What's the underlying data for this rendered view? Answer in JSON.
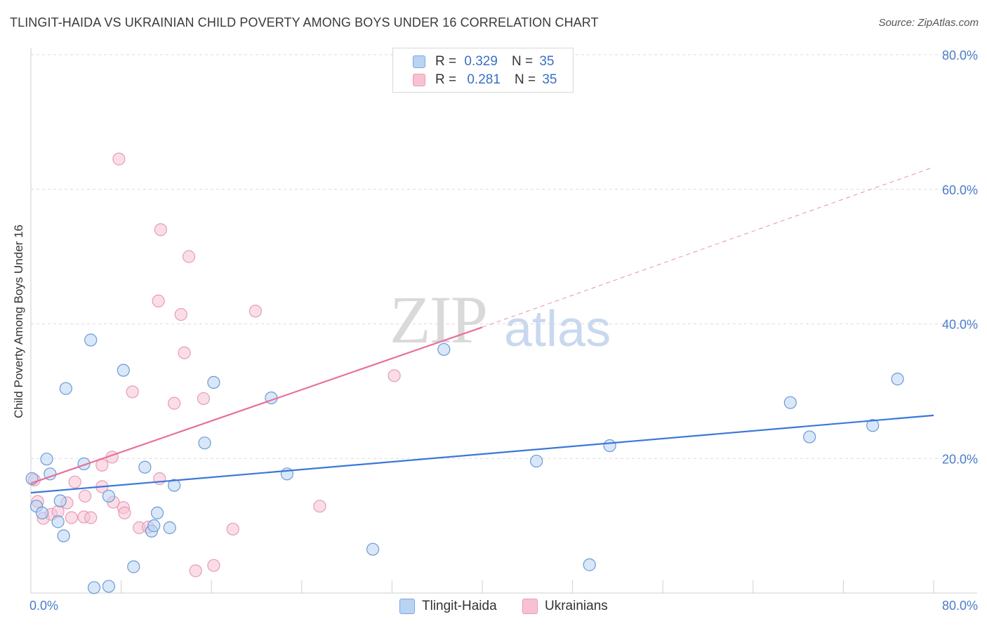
{
  "title": "TLINGIT-HAIDA VS UKRAINIAN CHILD POVERTY AMONG BOYS UNDER 16 CORRELATION CHART",
  "source": "Source: ZipAtlas.com",
  "watermark": {
    "zip": "ZIP",
    "atlas": "atlas"
  },
  "colors": {
    "blue": "#3a78d8",
    "blue_fill": "#b9d3f3",
    "pink": "#e8709a",
    "pink_fill": "#f6c2d3",
    "grid": "#dcdcdc",
    "tick": "#4a7cc9"
  },
  "legend": {
    "series": [
      {
        "r_label": "R =",
        "r_value": "0.329",
        "n_label": "N =",
        "n_value": "35"
      },
      {
        "r_label": "R =",
        "r_value": "0.281",
        "n_label": "N =",
        "n_value": "35"
      }
    ]
  },
  "bottom_legend": [
    "Tlingit-Haida",
    "Ukrainians"
  ],
  "chart_data": {
    "type": "scatter",
    "title": "TLINGIT-HAIDA VS UKRAINIAN CHILD POVERTY AMONG BOYS UNDER 16 CORRELATION CHART",
    "xlabel": "",
    "ylabel": "Child Poverty Among Boys Under 16",
    "xlim": [
      0,
      80
    ],
    "ylim": [
      0,
      80
    ],
    "x_tick_labels": [
      "0.0%",
      "80.0%"
    ],
    "y_tick_labels": [
      "20.0%",
      "40.0%",
      "60.0%",
      "80.0%"
    ],
    "y_ticks": [
      20,
      40,
      60,
      80
    ],
    "series": [
      {
        "name": "Tlingit-Haida",
        "r": 0.329,
        "n": 35,
        "points": [
          [
            0.1,
            17.0
          ],
          [
            0.5,
            12.9
          ],
          [
            1.0,
            11.9
          ],
          [
            1.4,
            19.9
          ],
          [
            1.7,
            17.7
          ],
          [
            2.4,
            10.6
          ],
          [
            2.6,
            13.7
          ],
          [
            2.9,
            8.5
          ],
          [
            3.1,
            30.4
          ],
          [
            4.7,
            19.2
          ],
          [
            5.3,
            37.6
          ],
          [
            5.6,
            0.8
          ],
          [
            6.9,
            14.4
          ],
          [
            6.9,
            1.0
          ],
          [
            8.2,
            33.1
          ],
          [
            9.1,
            3.9
          ],
          [
            10.1,
            18.7
          ],
          [
            10.7,
            9.2
          ],
          [
            10.9,
            10.0
          ],
          [
            11.2,
            11.9
          ],
          [
            12.3,
            9.7
          ],
          [
            12.7,
            16.0
          ],
          [
            15.4,
            22.3
          ],
          [
            16.2,
            31.3
          ],
          [
            21.3,
            29.0
          ],
          [
            22.7,
            17.7
          ],
          [
            30.3,
            6.5
          ],
          [
            36.6,
            36.2
          ],
          [
            44.8,
            19.6
          ],
          [
            49.5,
            4.2
          ],
          [
            51.3,
            21.9
          ],
          [
            67.3,
            28.3
          ],
          [
            69.0,
            23.2
          ],
          [
            74.6,
            24.9
          ],
          [
            76.8,
            31.8
          ]
        ],
        "trend": {
          "x": [
            0,
            80
          ],
          "y": [
            14.9,
            26.4
          ]
        }
      },
      {
        "name": "Ukrainians",
        "r": 0.281,
        "n": 35,
        "points": [
          [
            0.3,
            16.8
          ],
          [
            0.6,
            13.6
          ],
          [
            1.1,
            11.1
          ],
          [
            1.8,
            11.7
          ],
          [
            2.4,
            12.1
          ],
          [
            3.2,
            13.4
          ],
          [
            3.6,
            11.2
          ],
          [
            3.9,
            16.5
          ],
          [
            4.7,
            11.3
          ],
          [
            4.8,
            14.4
          ],
          [
            5.3,
            11.2
          ],
          [
            6.3,
            19.0
          ],
          [
            6.3,
            15.8
          ],
          [
            7.2,
            20.2
          ],
          [
            7.3,
            13.5
          ],
          [
            8.2,
            12.7
          ],
          [
            8.3,
            11.9
          ],
          [
            9.0,
            29.9
          ],
          [
            9.6,
            9.7
          ],
          [
            10.4,
            9.8
          ],
          [
            11.4,
            17.0
          ],
          [
            11.3,
            43.4
          ],
          [
            11.5,
            54.0
          ],
          [
            7.8,
            64.5
          ],
          [
            12.7,
            28.2
          ],
          [
            13.3,
            41.4
          ],
          [
            13.6,
            35.7
          ],
          [
            14.0,
            50.0
          ],
          [
            14.6,
            3.3
          ],
          [
            15.3,
            28.9
          ],
          [
            16.2,
            4.1
          ],
          [
            17.9,
            9.5
          ],
          [
            19.9,
            41.9
          ],
          [
            25.6,
            12.9
          ],
          [
            32.2,
            32.3
          ]
        ],
        "trend": {
          "x": [
            0,
            40
          ],
          "y": [
            16.3,
            39.5
          ]
        },
        "trend_extension": {
          "x": [
            40,
            80
          ],
          "y": [
            39.5,
            63.3
          ]
        }
      }
    ]
  }
}
